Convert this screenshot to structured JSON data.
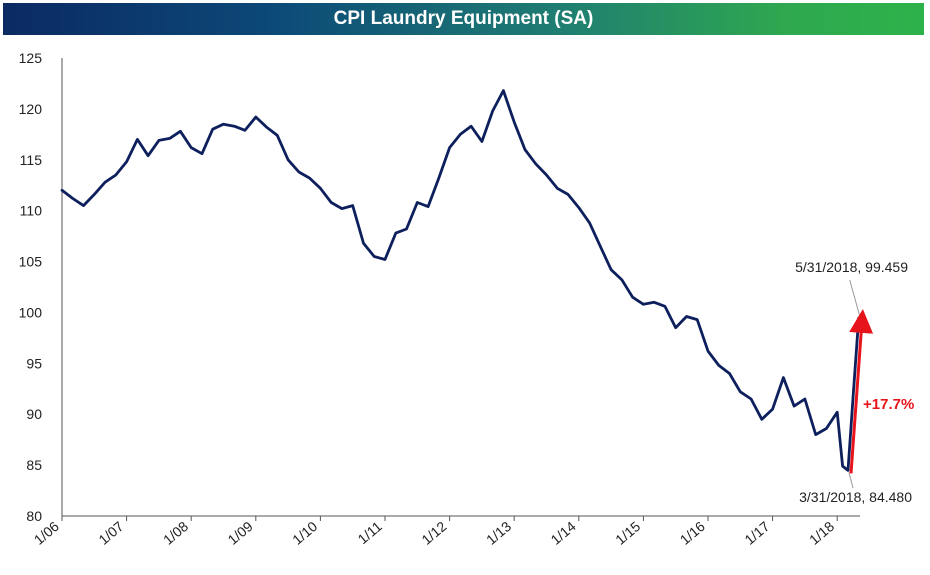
{
  "title": "CPI Laundry Equipment (SA)",
  "colors": {
    "line": "#0d1f5c",
    "arrow": "#e8141b",
    "title_text": "#ffffff",
    "title_gradient": [
      "#0b2a63",
      "#2db24a"
    ]
  },
  "chart_data": {
    "type": "line",
    "title": "CPI Laundry Equipment (SA)",
    "xlabel": "",
    "ylabel": "",
    "ylim": [
      80,
      125
    ],
    "yticks": [
      80,
      85,
      90,
      95,
      100,
      105,
      110,
      115,
      120,
      125
    ],
    "xlim": [
      "2006-01",
      "2018-06"
    ],
    "xticks": [
      "1/06",
      "1/07",
      "1/08",
      "1/09",
      "1/10",
      "1/11",
      "1/12",
      "1/13",
      "1/14",
      "1/15",
      "1/16",
      "1/17",
      "1/18"
    ],
    "grid": false,
    "series": [
      {
        "x": [
          "2006-01",
          "2006-03",
          "2006-05",
          "2006-07",
          "2006-09",
          "2006-11",
          "2007-01",
          "2007-03",
          "2007-05",
          "2007-07",
          "2007-09",
          "2007-11",
          "2008-01",
          "2008-03",
          "2008-05",
          "2008-07",
          "2008-09",
          "2008-11",
          "2009-01",
          "2009-03",
          "2009-05",
          "2009-07",
          "2009-09",
          "2009-11",
          "2010-01",
          "2010-03",
          "2010-05",
          "2010-07",
          "2010-09",
          "2010-11",
          "2011-01",
          "2011-03",
          "2011-05",
          "2011-07",
          "2011-09",
          "2011-11",
          "2012-01",
          "2012-03",
          "2012-05",
          "2012-07",
          "2012-09",
          "2012-11",
          "2013-01",
          "2013-03",
          "2013-05",
          "2013-07",
          "2013-09",
          "2013-11",
          "2014-01",
          "2014-03",
          "2014-05",
          "2014-07",
          "2014-09",
          "2014-11",
          "2015-01",
          "2015-03",
          "2015-05",
          "2015-07",
          "2015-09",
          "2015-11",
          "2016-01",
          "2016-03",
          "2016-05",
          "2016-07",
          "2016-09",
          "2016-11",
          "2017-01",
          "2017-03",
          "2017-05",
          "2017-07",
          "2017-09",
          "2017-11",
          "2018-01",
          "2018-02",
          "2018-03",
          "2018-04",
          "2018-05"
        ],
        "values": [
          112.0,
          111.2,
          110.5,
          111.6,
          112.8,
          113.5,
          114.8,
          117.0,
          115.4,
          116.9,
          117.1,
          117.8,
          116.2,
          115.6,
          118.0,
          118.5,
          118.3,
          117.9,
          119.2,
          118.2,
          117.4,
          115.0,
          113.8,
          113.2,
          112.2,
          110.8,
          110.2,
          110.5,
          106.8,
          105.5,
          105.2,
          107.8,
          108.2,
          110.8,
          110.4,
          113.2,
          116.2,
          117.5,
          118.3,
          116.8,
          119.8,
          121.8,
          118.7,
          116.0,
          114.6,
          113.5,
          112.2,
          111.6,
          110.3,
          108.8,
          106.5,
          104.2,
          103.2,
          101.5,
          100.8,
          101.0,
          100.6,
          98.5,
          99.6,
          99.3,
          96.2,
          94.8,
          94.0,
          92.2,
          91.5,
          89.5,
          90.5,
          93.6,
          90.8,
          91.5,
          88.0,
          88.6,
          90.2,
          84.9,
          84.48,
          92.0,
          99.459
        ]
      }
    ],
    "annotations": [
      {
        "label": "5/31/2018, 99.459",
        "x": "2018-05",
        "y": 99.459
      },
      {
        "label": "3/31/2018, 84.480",
        "x": "2018-03",
        "y": 84.48
      }
    ],
    "change_label": "+17.7%"
  }
}
